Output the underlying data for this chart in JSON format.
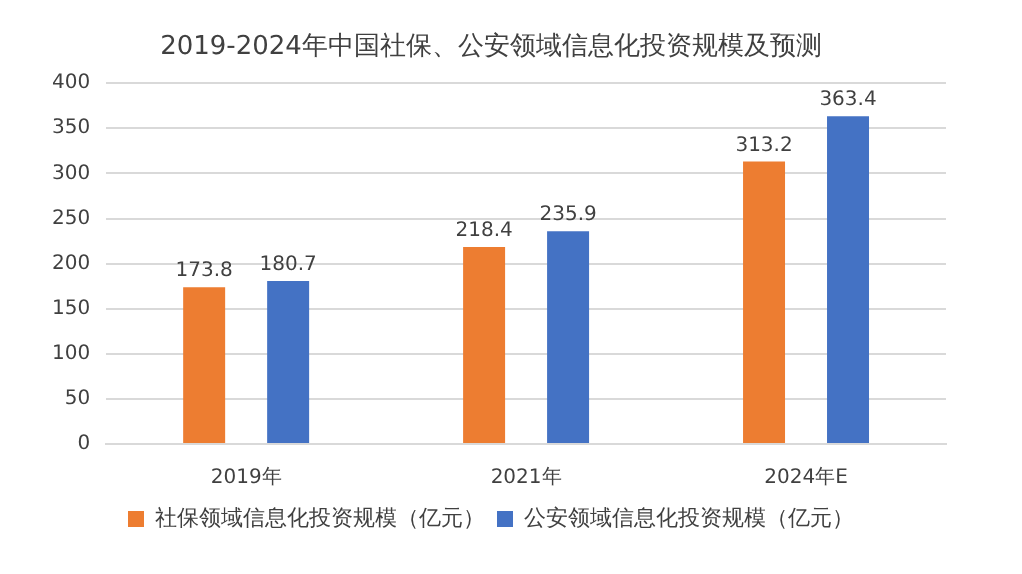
{
  "chart_data": {
    "type": "bar",
    "title": "2019-2024年中国社保、公安领域信息化投资规模及预测",
    "categories": [
      "2019年",
      "2021年",
      "2024年E"
    ],
    "series": [
      {
        "name": "社保领域信息化投资规模（亿元）",
        "color": "#ed7d31",
        "values": [
          173.8,
          218.4,
          313.2
        ]
      },
      {
        "name": "公安领域信息化投资规模（亿元）",
        "color": "#4472c4",
        "values": [
          180.7,
          235.9,
          363.4
        ]
      }
    ],
    "ylim": [
      0,
      400
    ],
    "yticks": [
      0,
      50,
      100,
      150,
      200,
      250,
      300,
      350,
      400
    ],
    "grid": "y",
    "legend": "bottom",
    "data_labels": true
  }
}
